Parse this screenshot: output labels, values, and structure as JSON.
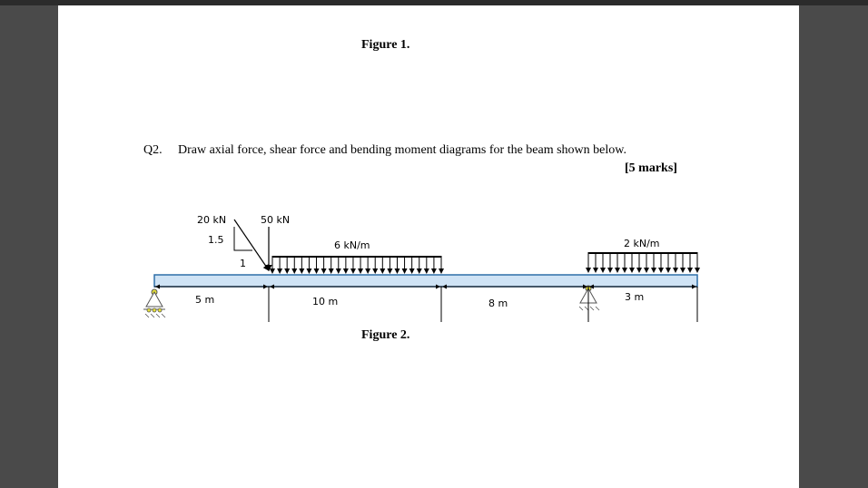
{
  "document": {
    "figure1_caption": "Figure 1.",
    "question_number": "Q2.",
    "question_text": "Draw axial force, shear force and bending moment diagrams for the beam shown below.",
    "marks": "[5 marks]",
    "figure2_caption": "Figure 2."
  },
  "diagram": {
    "point_load_inclined": "20 kN",
    "slope_vertical": "1.5",
    "slope_horizontal": "1",
    "point_load_vertical": "50 kN",
    "udl_left": "6 kN/m",
    "udl_right": "2 kN/m",
    "span_1": "5 m",
    "span_2": "10 m",
    "span_3": "8 m",
    "span_4": "3 m"
  },
  "colors": {
    "beam_fill": "#cfe3f5",
    "beam_edge": "#2f6fa8",
    "support": "#e8e23a",
    "page": "#ffffff",
    "background": "#4a4a4a"
  }
}
